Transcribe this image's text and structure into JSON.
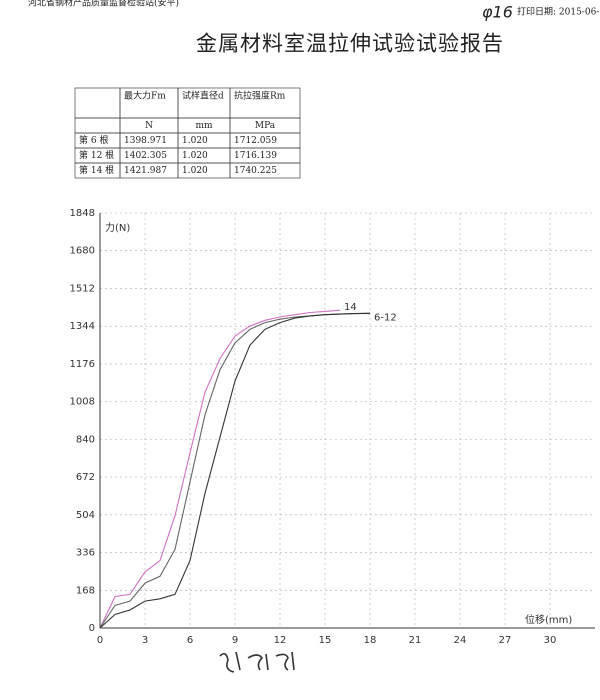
{
  "header": {
    "lab": "河北省钢材产品质量监督检验站(安平)",
    "spec_note": "φ16",
    "print_date": "打印日期: 2015-06-",
    "title": "金属材料室温拉伸试验试验报告"
  },
  "table": {
    "header": [
      "",
      "最大力Fm",
      "试样直径d",
      "抗拉强度Rm"
    ],
    "units": [
      "",
      "N",
      "mm",
      "MPa"
    ],
    "rows": [
      [
        "第 6 根",
        "1398.971",
        "1.020",
        "1712.059"
      ],
      [
        "第 12 根",
        "1402.305",
        "1.020",
        "1716.139"
      ],
      [
        "第 14 根",
        "1421.987",
        "1.020",
        "1740.225"
      ]
    ]
  },
  "chart_data": {
    "type": "line",
    "y_label": "力(N)",
    "x_label": "位移(mm)",
    "x": [
      0,
      1,
      2,
      3,
      4,
      5,
      6,
      7,
      8,
      9,
      10,
      11,
      12,
      13,
      14,
      15,
      16,
      17,
      18
    ],
    "series": [
      {
        "name": "14",
        "color": "#d070c0",
        "values": [
          0,
          140,
          150,
          250,
          300,
          500,
          780,
          1050,
          1200,
          1300,
          1345,
          1370,
          1385,
          1395,
          1405,
          1410,
          1415,
          null,
          null
        ]
      },
      {
        "name": "6-12",
        "color": "#666666",
        "values": [
          0,
          100,
          120,
          200,
          230,
          350,
          650,
          950,
          1150,
          1270,
          1330,
          1360,
          1375,
          1385,
          1390,
          1395,
          1398,
          1400,
          1400
        ]
      },
      {
        "color": "#333333",
        "values": [
          0,
          60,
          80,
          120,
          130,
          150,
          300,
          600,
          850,
          1100,
          1260,
          1330,
          1360,
          1380,
          1390,
          1395,
          1398,
          1400,
          1402
        ]
      }
    ],
    "xlim": [
      0,
      33
    ],
    "xticks": [
      0,
      3,
      6,
      9,
      12,
      15,
      18,
      21,
      24,
      27,
      30
    ],
    "ylim": [
      0,
      1848
    ],
    "yticks": [
      0,
      168,
      336,
      504,
      672,
      840,
      1008,
      1176,
      1344,
      1512,
      1680,
      1848
    ],
    "grid": true
  }
}
